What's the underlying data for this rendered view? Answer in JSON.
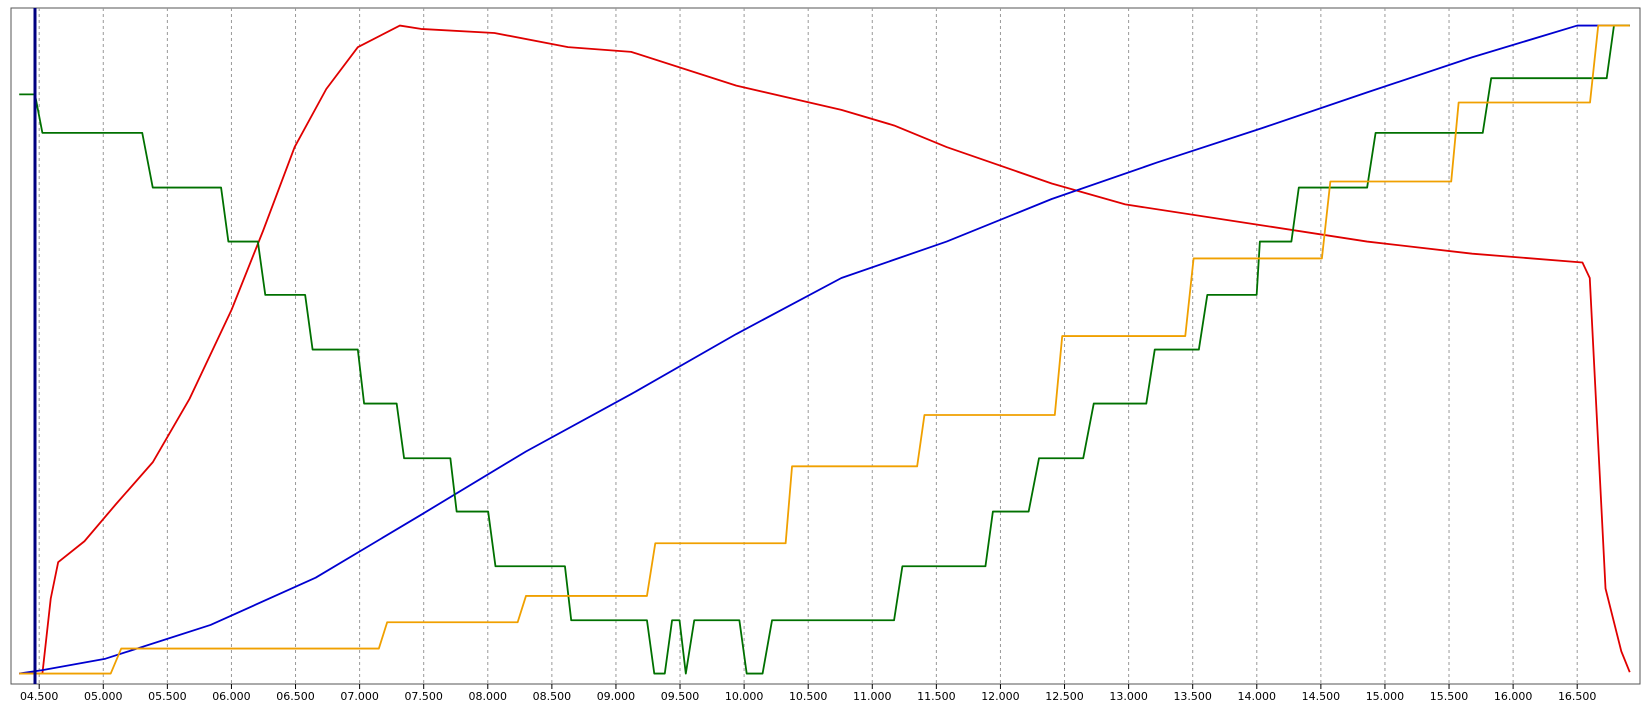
{
  "chart_data": {
    "type": "line",
    "xlim": [
      4.28,
      16.99
    ],
    "ylim": [
      0,
      100
    ],
    "grid": true,
    "xticks": [
      {
        "value": 4.5,
        "label": "04.500"
      },
      {
        "value": 5.0,
        "label": "05.000"
      },
      {
        "value": 5.5,
        "label": "05.500"
      },
      {
        "value": 6.0,
        "label": "06.000"
      },
      {
        "value": 6.5,
        "label": "06.500"
      },
      {
        "value": 7.0,
        "label": "07.000"
      },
      {
        "value": 7.5,
        "label": "07.500"
      },
      {
        "value": 8.0,
        "label": "08.000"
      },
      {
        "value": 8.5,
        "label": "08.500"
      },
      {
        "value": 9.0,
        "label": "09.000"
      },
      {
        "value": 9.5,
        "label": "09.500"
      },
      {
        "value": 10.0,
        "label": "10.000"
      },
      {
        "value": 10.5,
        "label": "10.500"
      },
      {
        "value": 11.0,
        "label": "11.000"
      },
      {
        "value": 11.5,
        "label": "11.500"
      },
      {
        "value": 12.0,
        "label": "12.000"
      },
      {
        "value": 12.5,
        "label": "12.500"
      },
      {
        "value": 13.0,
        "label": "13.000"
      },
      {
        "value": 13.5,
        "label": "13.500"
      },
      {
        "value": 14.0,
        "label": "14.000"
      },
      {
        "value": 14.5,
        "label": "14.500"
      },
      {
        "value": 15.0,
        "label": "15.000"
      },
      {
        "value": 15.5,
        "label": "15.500"
      },
      {
        "value": 16.0,
        "label": "16.000"
      },
      {
        "value": 16.5,
        "label": "16.500"
      }
    ],
    "series": [
      {
        "color": "#e00000",
        "x": [
          4.344,
          4.525,
          4.59,
          4.648,
          4.853,
          5.099,
          5.386,
          5.673,
          6.001,
          6.247,
          6.493,
          6.74,
          6.986,
          7.314,
          7.478,
          8.052,
          8.626,
          9.119,
          9.939,
          10.759,
          11.17,
          11.58,
          12.4,
          12.974,
          14.041,
          14.861,
          15.681,
          16.541,
          16.598,
          16.721,
          16.844,
          16.91
        ],
        "values": [
          1.4,
          1.4,
          12.5,
          17.9,
          21.0,
          26.5,
          32.7,
          42.1,
          55.3,
          67.0,
          79.4,
          88.0,
          94.2,
          97.4,
          96.9,
          96.3,
          94.2,
          93.5,
          88.5,
          84.9,
          82.6,
          79.4,
          74.0,
          70.9,
          67.8,
          65.4,
          63.6,
          62.3,
          60.0,
          14.0,
          4.7,
          1.6
        ]
      },
      {
        "color": "#0000d0",
        "x": [
          4.344,
          4.525,
          5.017,
          5.837,
          6.657,
          7.478,
          8.298,
          9.119,
          9.939,
          10.759,
          11.58,
          12.4,
          13.22,
          14.041,
          14.861,
          15.681,
          16.5,
          16.91
        ],
        "values": [
          1.4,
          1.9,
          3.6,
          8.6,
          15.6,
          24.9,
          34.3,
          42.8,
          51.7,
          60.0,
          65.4,
          71.7,
          77.1,
          82.2,
          87.5,
          92.7,
          97.4,
          97.4
        ]
      },
      {
        "color": "#007000",
        "x": [
          4.344,
          4.467,
          4.525,
          5.304,
          5.386,
          5.919,
          5.976,
          6.206,
          6.264,
          6.575,
          6.633,
          6.986,
          7.035,
          7.289,
          7.347,
          7.708,
          7.757,
          8.003,
          8.06,
          8.602,
          8.651,
          9.242,
          9.299,
          9.381,
          9.438,
          9.496,
          9.545,
          9.611,
          9.963,
          10.02,
          10.144,
          10.218,
          11.17,
          11.235,
          11.883,
          11.941,
          12.22,
          12.301,
          12.646,
          12.728,
          13.138,
          13.204,
          13.548,
          13.614,
          13.999,
          14.024,
          14.27,
          14.328,
          14.861,
          14.927,
          15.763,
          15.829,
          16.73,
          16.787,
          16.91
        ],
        "values": [
          87.2,
          87.2,
          81.5,
          81.5,
          73.4,
          73.4,
          65.4,
          65.4,
          57.5,
          57.5,
          49.4,
          49.4,
          41.4,
          41.4,
          33.3,
          33.3,
          25.4,
          25.4,
          17.3,
          17.3,
          9.3,
          9.3,
          1.4,
          1.4,
          9.3,
          9.3,
          1.4,
          9.3,
          9.3,
          1.4,
          1.4,
          9.3,
          9.3,
          17.3,
          17.3,
          25.4,
          25.4,
          33.3,
          33.3,
          41.4,
          41.4,
          49.4,
          49.4,
          57.5,
          57.5,
          65.4,
          65.4,
          73.4,
          73.4,
          81.5,
          81.5,
          89.6,
          89.6,
          97.4,
          97.4
        ]
      },
      {
        "color": "#f0a000",
        "x": [
          4.344,
          5.058,
          5.14,
          7.15,
          7.215,
          8.233,
          8.298,
          9.242,
          9.307,
          10.324,
          10.374,
          11.35,
          11.407,
          12.424,
          12.482,
          13.442,
          13.507,
          14.508,
          14.574,
          15.517,
          15.575,
          16.6,
          16.664,
          16.91
        ],
        "values": [
          1.4,
          1.4,
          5.1,
          5.1,
          9.0,
          9.0,
          12.9,
          12.9,
          20.7,
          20.7,
          32.1,
          32.1,
          39.7,
          39.7,
          51.4,
          51.4,
          62.9,
          62.9,
          74.3,
          74.3,
          86.0,
          86.0,
          97.4,
          97.4
        ]
      }
    ]
  }
}
